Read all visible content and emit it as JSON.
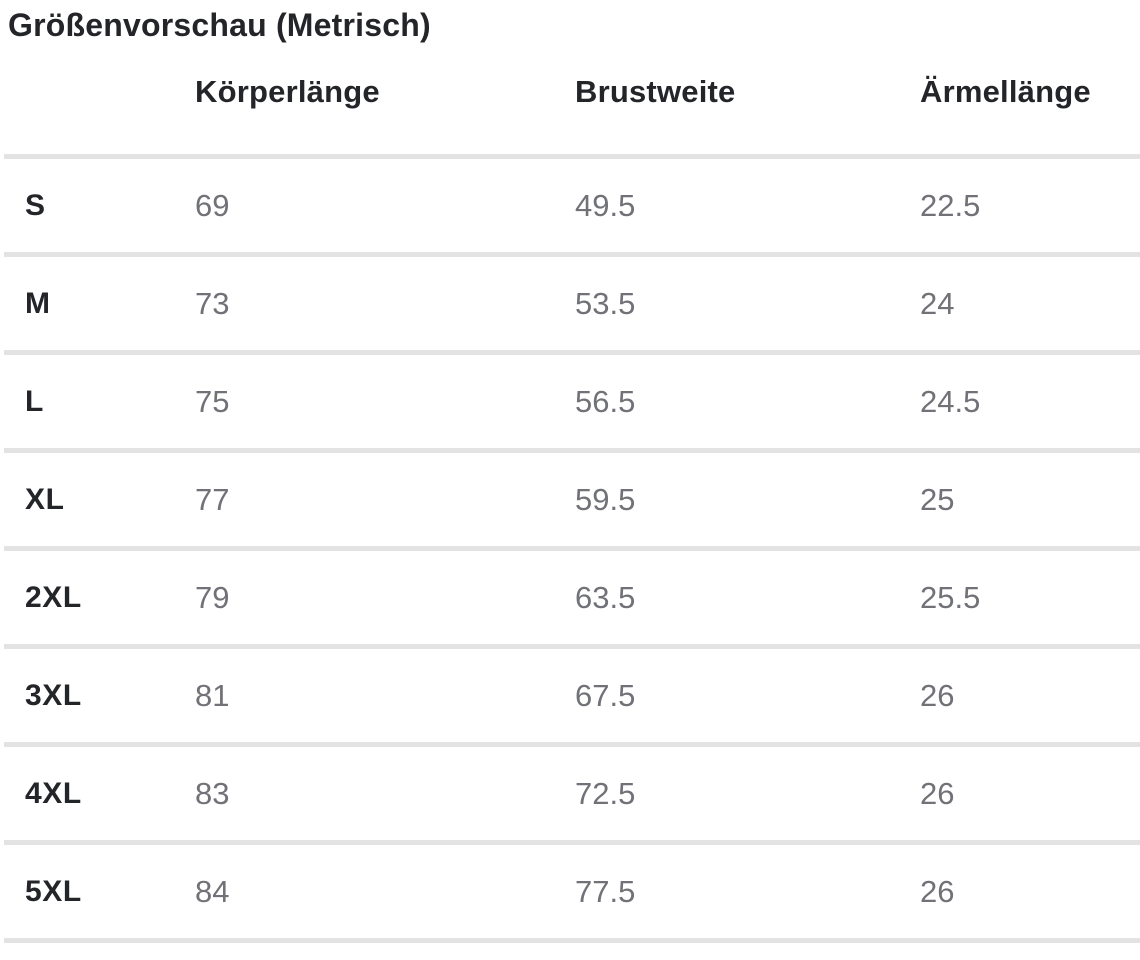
{
  "title": "Größenvorschau (Metrisch)",
  "table": {
    "columns": [
      "Körperlänge",
      "Brustweite",
      "Ärmellänge"
    ],
    "rows": [
      {
        "size": "S",
        "values": [
          "69",
          "49.5",
          "22.5"
        ]
      },
      {
        "size": "M",
        "values": [
          "73",
          "53.5",
          "24"
        ]
      },
      {
        "size": "L",
        "values": [
          "75",
          "56.5",
          "24.5"
        ]
      },
      {
        "size": "XL",
        "values": [
          "77",
          "59.5",
          "25"
        ]
      },
      {
        "size": "2XL",
        "values": [
          "79",
          "63.5",
          "25.5"
        ]
      },
      {
        "size": "3XL",
        "values": [
          "81",
          "67.5",
          "26"
        ]
      },
      {
        "size": "4XL",
        "values": [
          "83",
          "72.5",
          "26"
        ]
      },
      {
        "size": "5XL",
        "values": [
          "84",
          "77.5",
          "26"
        ]
      }
    ]
  },
  "colors": {
    "heading_text": "#232529",
    "value_text": "#717277",
    "divider": "#e3e3e4",
    "background": "#ffffff"
  }
}
